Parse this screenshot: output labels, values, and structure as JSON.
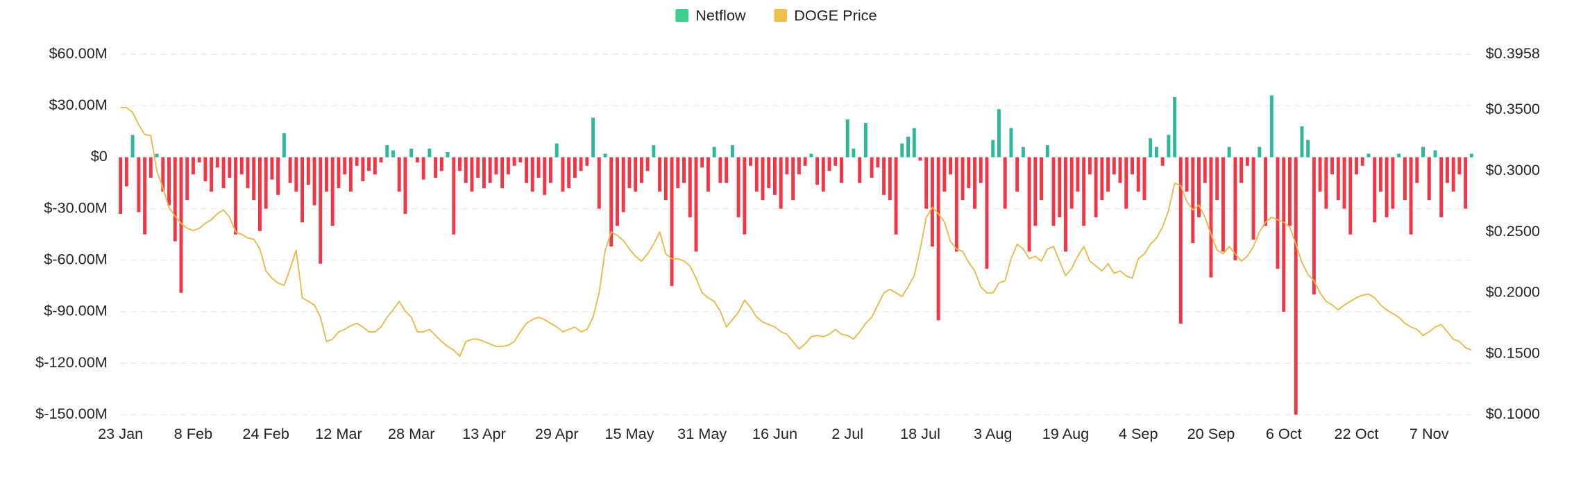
{
  "chart_data": {
    "type": "bar_line",
    "series": [
      {
        "name": "Netflow",
        "color": "#3ccf8e",
        "positive_color": "#2eb89a",
        "negative_color": "#f23645",
        "values": [
          -33,
          -17,
          13,
          -32,
          -45,
          -12,
          2,
          -20,
          -28,
          -49,
          -79,
          -25,
          -10,
          -3,
          -14,
          -20,
          -6,
          -18,
          -12,
          -45,
          -10,
          -18,
          -25,
          -43,
          -30,
          -13,
          -22,
          14,
          -15,
          -20,
          -38,
          -16,
          -28,
          -62,
          -20,
          -40,
          -18,
          -10,
          -20,
          -5,
          -14,
          -8,
          -10,
          -3,
          7,
          4,
          -20,
          -33,
          5,
          -3,
          -13,
          5,
          -12,
          -8,
          3,
          -45,
          -8,
          -15,
          -20,
          -12,
          -18,
          -15,
          -10,
          -18,
          -10,
          -5,
          -3,
          -15,
          -20,
          -12,
          -22,
          -15,
          8,
          -20,
          -18,
          -12,
          -8,
          -5,
          23,
          -30,
          2,
          -52,
          -40,
          -32,
          -18,
          -20,
          -15,
          -8,
          7,
          -20,
          -25,
          -75,
          -18,
          -15,
          -35,
          -55,
          -6,
          -20,
          6,
          -15,
          -15,
          7,
          -35,
          -45,
          -5,
          -20,
          -25,
          -18,
          -22,
          -30,
          -10,
          -25,
          -10,
          -5,
          2,
          -16,
          -20,
          -8,
          -5,
          -15,
          22,
          5,
          -15,
          20,
          -12,
          -6,
          -22,
          -25,
          -45,
          8,
          12,
          17,
          -2,
          -30,
          -52,
          -95,
          -20,
          -10,
          -55,
          -25,
          -18,
          -30,
          -15,
          -65,
          10,
          28,
          -30,
          17,
          -20,
          6,
          -55,
          -40,
          -25,
          7,
          -40,
          -35,
          -55,
          -30,
          -20,
          -40,
          -10,
          -35,
          -25,
          -20,
          -10,
          -15,
          -30,
          -10,
          -20,
          -25,
          11,
          6,
          -5,
          13,
          35,
          -97,
          -20,
          -50,
          -35,
          -15,
          -70,
          -25,
          -55,
          6,
          -60,
          -15,
          -5,
          -48,
          6,
          -40,
          36,
          -65,
          -90,
          -40,
          -150,
          18,
          10,
          -80,
          -20,
          -30,
          -10,
          -25,
          -30,
          -45,
          -10,
          -5,
          2,
          -38,
          -20,
          -35,
          -30,
          2,
          -25,
          -45,
          -15,
          6,
          -25,
          4,
          -35,
          -15,
          -20,
          -10,
          -30,
          2
        ]
      },
      {
        "name": "DOGE Price",
        "color": "#f0c04a",
        "line_color": "#e9b949",
        "axis": "y2",
        "values": [
          0.352,
          0.352,
          0.348,
          0.338,
          0.33,
          0.329,
          0.3,
          0.286,
          0.27,
          0.263,
          0.257,
          0.253,
          0.251,
          0.253,
          0.257,
          0.26,
          0.265,
          0.268,
          0.262,
          0.25,
          0.248,
          0.245,
          0.244,
          0.236,
          0.218,
          0.212,
          0.208,
          0.206,
          0.22,
          0.235,
          0.196,
          0.193,
          0.19,
          0.18,
          0.16,
          0.162,
          0.168,
          0.17,
          0.173,
          0.175,
          0.172,
          0.168,
          0.168,
          0.172,
          0.18,
          0.186,
          0.193,
          0.185,
          0.18,
          0.168,
          0.168,
          0.17,
          0.165,
          0.16,
          0.156,
          0.153,
          0.148,
          0.16,
          0.162,
          0.162,
          0.16,
          0.158,
          0.156,
          0.156,
          0.157,
          0.16,
          0.168,
          0.175,
          0.178,
          0.18,
          0.178,
          0.175,
          0.172,
          0.168,
          0.17,
          0.172,
          0.168,
          0.17,
          0.18,
          0.2,
          0.235,
          0.25,
          0.247,
          0.243,
          0.236,
          0.23,
          0.226,
          0.232,
          0.24,
          0.25,
          0.232,
          0.228,
          0.228,
          0.226,
          0.222,
          0.212,
          0.2,
          0.196,
          0.193,
          0.185,
          0.172,
          0.178,
          0.184,
          0.194,
          0.188,
          0.18,
          0.176,
          0.174,
          0.172,
          0.168,
          0.166,
          0.16,
          0.154,
          0.158,
          0.164,
          0.165,
          0.164,
          0.166,
          0.17,
          0.166,
          0.165,
          0.162,
          0.168,
          0.175,
          0.18,
          0.19,
          0.2,
          0.203,
          0.2,
          0.197,
          0.205,
          0.214,
          0.236,
          0.262,
          0.27,
          0.265,
          0.258,
          0.242,
          0.236,
          0.234,
          0.225,
          0.218,
          0.205,
          0.2,
          0.2,
          0.208,
          0.21,
          0.228,
          0.24,
          0.236,
          0.228,
          0.23,
          0.226,
          0.236,
          0.238,
          0.226,
          0.214,
          0.22,
          0.23,
          0.238,
          0.226,
          0.222,
          0.218,
          0.224,
          0.216,
          0.218,
          0.214,
          0.212,
          0.228,
          0.232,
          0.24,
          0.245,
          0.254,
          0.268,
          0.29,
          0.288,
          0.275,
          0.268,
          0.272,
          0.262,
          0.248,
          0.235,
          0.232,
          0.238,
          0.232,
          0.226,
          0.23,
          0.238,
          0.25,
          0.258,
          0.262,
          0.26,
          0.258,
          0.254,
          0.24,
          0.225,
          0.215,
          0.21,
          0.2,
          0.193,
          0.19,
          0.186,
          0.19,
          0.193,
          0.196,
          0.198,
          0.199,
          0.196,
          0.19,
          0.186,
          0.183,
          0.18,
          0.175,
          0.172,
          0.17,
          0.165,
          0.168,
          0.172,
          0.174,
          0.168,
          0.162,
          0.16,
          0.155,
          0.153
        ]
      }
    ],
    "categories": [
      "23 Jan",
      null,
      null,
      null,
      null,
      null,
      null,
      null,
      null,
      null,
      null,
      null,
      "8 Feb",
      null,
      null,
      null,
      null,
      null,
      null,
      null,
      null,
      null,
      null,
      null,
      "24 Feb",
      null,
      null,
      null,
      null,
      null,
      null,
      null,
      null,
      null,
      null,
      null,
      "12 Mar",
      null,
      null,
      null,
      null,
      null,
      null,
      null,
      null,
      null,
      null,
      null,
      "28 Mar",
      null,
      null,
      null,
      null,
      null,
      null,
      null,
      null,
      null,
      null,
      null,
      "13 Apr",
      null,
      null,
      null,
      null,
      null,
      null,
      null,
      null,
      null,
      null,
      null,
      "29 Apr",
      null,
      null,
      null,
      null,
      null,
      null,
      null,
      null,
      null,
      null,
      null,
      "15 May",
      null,
      null,
      null,
      null,
      null,
      null,
      null,
      null,
      null,
      null,
      null,
      "31 May",
      null,
      null,
      null,
      null,
      null,
      null,
      null,
      null,
      null,
      null,
      null,
      "16 Jun",
      null,
      null,
      null,
      null,
      null,
      null,
      null,
      null,
      null,
      null,
      null,
      "2 Jul",
      null,
      null,
      null,
      null,
      null,
      null,
      null,
      null,
      null,
      null,
      null,
      "18 Jul",
      null,
      null,
      null,
      null,
      null,
      null,
      null,
      null,
      null,
      null,
      null,
      "3 Aug",
      null,
      null,
      null,
      null,
      null,
      null,
      null,
      null,
      null,
      null,
      null,
      "19 Aug",
      null,
      null,
      null,
      null,
      null,
      null,
      null,
      null,
      null,
      null,
      null,
      "4 Sep",
      null,
      null,
      null,
      null,
      null,
      null,
      null,
      null,
      null,
      null,
      null,
      "20 Sep",
      null,
      null,
      null,
      null,
      null,
      null,
      null,
      null,
      null,
      null,
      null,
      "6 Oct",
      null,
      null,
      null,
      null,
      null,
      null,
      null,
      null,
      null,
      null,
      null,
      "22 Oct",
      null,
      null,
      null,
      null,
      null,
      null,
      null,
      null,
      null,
      null,
      null,
      "7 Nov",
      null,
      null,
      null,
      null,
      null,
      null,
      null
    ],
    "ylim": [
      -150,
      60
    ],
    "yticks": [
      {
        "value": 60,
        "label": "$60.00M"
      },
      {
        "value": 30,
        "label": "$30.00M"
      },
      {
        "value": 0,
        "label": "$0"
      },
      {
        "value": -30,
        "label": "$-30.00M"
      },
      {
        "value": -60,
        "label": "$-60.00M"
      },
      {
        "value": -90,
        "label": "$-90.00M"
      },
      {
        "value": -120,
        "label": "$-120.00M"
      },
      {
        "value": -150,
        "label": "$-150.00M"
      }
    ],
    "y2lim": [
      0.1,
      0.3958
    ],
    "y2ticks": [
      {
        "value": 0.3958,
        "label": "$0.3958"
      },
      {
        "value": 0.35,
        "label": "$0.3500"
      },
      {
        "value": 0.3,
        "label": "$0.3000"
      },
      {
        "value": 0.25,
        "label": "$0.2500"
      },
      {
        "value": 0.2,
        "label": "$0.2000"
      },
      {
        "value": 0.15,
        "label": "$0.1500"
      },
      {
        "value": 0.1,
        "label": "$0.1000"
      }
    ],
    "grid": true,
    "legend": "top"
  }
}
